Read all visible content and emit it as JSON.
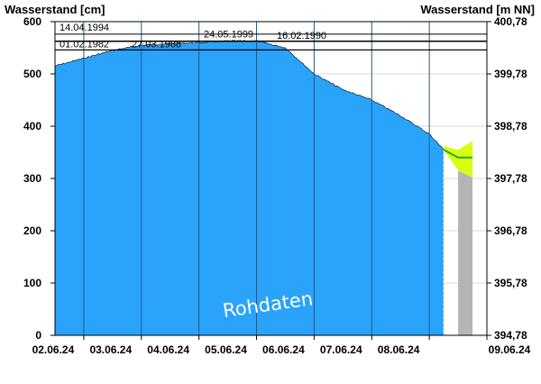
{
  "chart_data": {
    "type": "area",
    "y_left_title": "Wasserstand [cm]",
    "y_right_title": "Wasserstand [m NN]",
    "y_left_ticks": [
      "0",
      "100",
      "200",
      "300",
      "400",
      "500",
      "600"
    ],
    "y_left_values": [
      0,
      100,
      200,
      300,
      400,
      500,
      600
    ],
    "y_right_ticks": [
      "394,78",
      "395,78",
      "396,78",
      "397,78",
      "398,78",
      "399,78",
      "400,78"
    ],
    "ylim": [
      0,
      600
    ],
    "x_range": [
      "01.06.24 12:00",
      "09.06.24 00:00"
    ],
    "x_ticks": [
      "02.06.24",
      "03.06.24",
      "04.06.24",
      "05.06.24",
      "06.06.24",
      "07.06.24",
      "08.06.24",
      "09.06.24"
    ],
    "reference_lines": [
      {
        "label": "14.04.1994",
        "value": 576
      },
      {
        "label": "24.05.1999",
        "value": 563
      },
      {
        "label": "16.02.1990",
        "value": 562
      },
      {
        "label": "01.02.1982",
        "value": 546
      },
      {
        "label": "27.03.1988",
        "value": 546
      }
    ],
    "observed": {
      "x": [
        "01.06.24 12:00",
        "02.06.24 00:00",
        "02.06.24 12:00",
        "03.06.24 00:00",
        "03.06.24 12:00",
        "04.06.24 00:00",
        "04.06.24 12:00",
        "05.06.24 00:00",
        "05.06.24 12:00",
        "06.06.24 00:00",
        "06.06.24 12:00",
        "07.06.24 00:00",
        "07.06.24 12:00",
        "08.06.24 00:00",
        "08.06.24 06:00"
      ],
      "values": [
        515,
        530,
        545,
        555,
        558,
        560,
        563,
        563,
        550,
        500,
        470,
        450,
        420,
        385,
        355
      ]
    },
    "forecast_median": {
      "x": [
        "08.06.24 06:00",
        "08.06.24 12:00",
        "08.06.24 18:00"
      ],
      "values": [
        355,
        340,
        340
      ]
    },
    "forecast_band": {
      "x": [
        "08.06.24 06:00",
        "08.06.24 12:00",
        "08.06.24 18:00"
      ],
      "upper": [
        362,
        355,
        372
      ],
      "lower": [
        355,
        315,
        302
      ]
    },
    "watermark": "Rohdaten",
    "colors": {
      "observed_fill": "#2aa3fb",
      "gridline": "#1f5a8c",
      "forecast_band": "#d7ff12",
      "forecast_line": "#22aa22",
      "forecast_gray": "#b5b5b5",
      "forecast_marker": "#ffffff",
      "observed_edge": "#000000"
    }
  }
}
